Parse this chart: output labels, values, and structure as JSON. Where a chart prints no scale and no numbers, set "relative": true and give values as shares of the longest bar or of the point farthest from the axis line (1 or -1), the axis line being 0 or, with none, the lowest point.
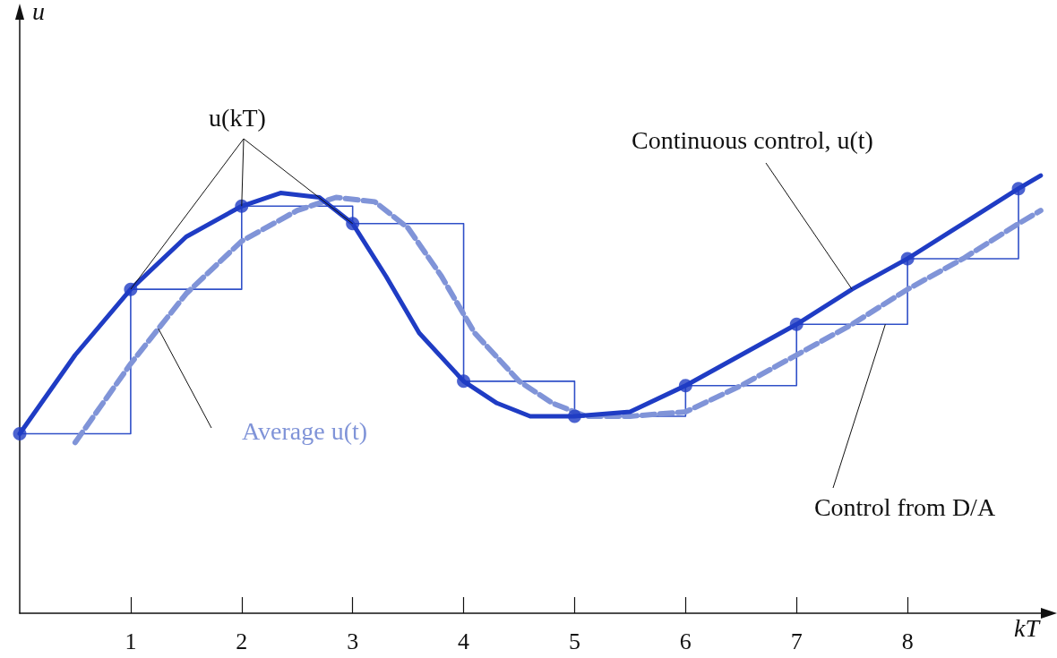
{
  "chart_data": {
    "type": "line",
    "relative": true,
    "xlabel": "kT",
    "annotations": [
      "u"
    ],
    "xlim": [
      0,
      9.25
    ],
    "xticks": [
      1,
      2,
      3,
      4,
      5,
      6,
      7,
      8
    ],
    "grid": false,
    "legend": false,
    "series": [
      {
        "name": "Continuous control, u(t)",
        "color": "#1f3cc4",
        "marker": "none",
        "line_style": "solid",
        "x": [
          0,
          0.5,
          1,
          1.5,
          2,
          2.35,
          2.7,
          3,
          3.3,
          3.6,
          4,
          4.3,
          4.6,
          5,
          5.5,
          6,
          6.5,
          7,
          7.5,
          8,
          8.5,
          9,
          9.2
        ],
        "values": [
          0.41,
          0.59,
          0.74,
          0.86,
          0.93,
          0.96,
          0.95,
          0.89,
          0.77,
          0.64,
          0.53,
          0.48,
          0.45,
          0.45,
          0.46,
          0.52,
          0.59,
          0.66,
          0.74,
          0.81,
          0.89,
          0.97,
          1
        ]
      },
      {
        "name": "Average u(t)",
        "color": "#8094d8",
        "marker": "none",
        "line_style": "dashed",
        "x": [
          0.5,
          1,
          1.5,
          2,
          2.5,
          2.85,
          3.2,
          3.5,
          3.8,
          4.1,
          4.5,
          4.8,
          5.1,
          5.5,
          6,
          6.5,
          7,
          7.5,
          8,
          8.5,
          9,
          9.2
        ],
        "values": [
          0.39,
          0.57,
          0.73,
          0.85,
          0.92,
          0.95,
          0.94,
          0.88,
          0.77,
          0.64,
          0.53,
          0.48,
          0.45,
          0.45,
          0.46,
          0.52,
          0.59,
          0.66,
          0.74,
          0.81,
          0.89,
          0.92
        ]
      },
      {
        "name": "Control from D/A",
        "type": "step",
        "color": "#3050c8",
        "marker": "none",
        "line_style": "solid",
        "x": [
          0,
          1,
          2,
          3,
          4,
          5,
          6,
          7,
          8,
          9
        ],
        "values": [
          0.41,
          0.74,
          0.93,
          0.89,
          0.53,
          0.45,
          0.52,
          0.66,
          0.81,
          0.97
        ]
      },
      {
        "name": "u(kT)",
        "type": "scatter",
        "color": "#1f3cc4",
        "marker": "circle",
        "x": [
          0,
          1,
          2,
          3,
          4,
          5,
          6,
          7,
          8,
          9
        ],
        "values": [
          0.41,
          0.74,
          0.93,
          0.89,
          0.53,
          0.45,
          0.52,
          0.66,
          0.81,
          0.97
        ]
      }
    ]
  }
}
